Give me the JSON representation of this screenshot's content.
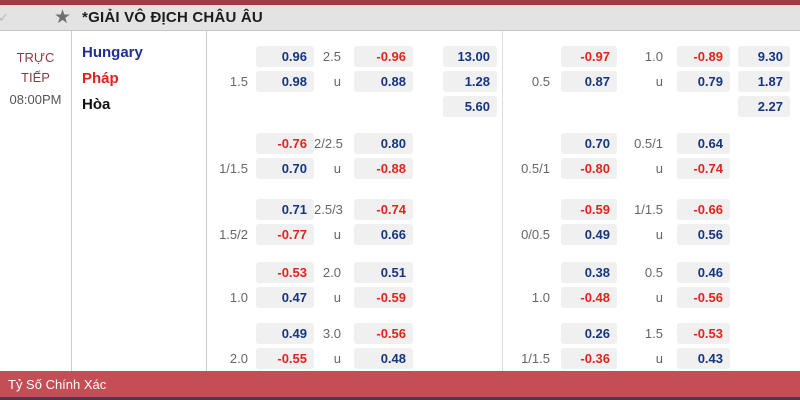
{
  "topbar": {
    "title": "*GIẢI VÔ ĐỊCH CHÂU ÂU",
    "icons": {
      "star": "★",
      "checkmark": "✓"
    }
  },
  "match": {
    "status": "TRỰC TIẾP",
    "time": "08:00PM",
    "home": "Hungary",
    "away": "Pháp",
    "draw": "Hòa"
  },
  "colors": {
    "positive_odds": "#17357e",
    "negative_odds": "#e0241f",
    "top_strip": "#9d3c45",
    "footer_bar": "#c44e55",
    "home_team": "#1f2e91",
    "away_team": "#e51f1c",
    "status_text": "#8d3b44"
  },
  "blocks": [
    {
      "left": {
        "rows": [
          {
            "hdp": "",
            "hdp_odds": "0.96",
            "line": "2.5",
            "line_odds": "-0.96",
            "x12": "13.00"
          },
          {
            "hdp": "1.5",
            "hdp_odds": "0.98",
            "line": "u",
            "line_odds": "0.88",
            "x12": "1.28"
          },
          {
            "hdp": "",
            "hdp_odds": "",
            "line": "",
            "line_odds": "",
            "x12": "5.60"
          }
        ]
      },
      "right": {
        "rows": [
          {
            "hdp": "",
            "hdp_odds": "-0.97",
            "line": "1.0",
            "line_odds": "-0.89",
            "x12": "9.30"
          },
          {
            "hdp": "0.5",
            "hdp_odds": "0.87",
            "line": "u",
            "line_odds": "0.79",
            "x12": "1.87"
          },
          {
            "hdp": "",
            "hdp_odds": "",
            "line": "",
            "line_odds": "",
            "x12": "2.27"
          }
        ]
      }
    },
    {
      "left": {
        "rows": [
          {
            "hdp": "",
            "hdp_odds": "-0.76",
            "line": "2/2.5",
            "line_odds": "0.80"
          },
          {
            "hdp": "1/1.5",
            "hdp_odds": "0.70",
            "line": "u",
            "line_odds": "-0.88"
          }
        ]
      },
      "right": {
        "rows": [
          {
            "hdp": "",
            "hdp_odds": "0.70",
            "line": "0.5/1",
            "line_odds": "0.64"
          },
          {
            "hdp": "0.5/1",
            "hdp_odds": "-0.80",
            "line": "u",
            "line_odds": "-0.74"
          }
        ]
      }
    },
    {
      "left": {
        "rows": [
          {
            "hdp": "",
            "hdp_odds": "0.71",
            "line": "2.5/3",
            "line_odds": "-0.74"
          },
          {
            "hdp": "1.5/2",
            "hdp_odds": "-0.77",
            "line": "u",
            "line_odds": "0.66"
          }
        ]
      },
      "right": {
        "rows": [
          {
            "hdp": "",
            "hdp_odds": "-0.59",
            "line": "1/1.5",
            "line_odds": "-0.66"
          },
          {
            "hdp": "0/0.5",
            "hdp_odds": "0.49",
            "line": "u",
            "line_odds": "0.56"
          }
        ]
      }
    },
    {
      "left": {
        "rows": [
          {
            "hdp": "",
            "hdp_odds": "-0.53",
            "line": "2.0",
            "line_odds": "0.51"
          },
          {
            "hdp": "1.0",
            "hdp_odds": "0.47",
            "line": "u",
            "line_odds": "-0.59"
          }
        ]
      },
      "right": {
        "rows": [
          {
            "hdp": "",
            "hdp_odds": "0.38",
            "line": "0.5",
            "line_odds": "0.46"
          },
          {
            "hdp": "1.0",
            "hdp_odds": "-0.48",
            "line": "u",
            "line_odds": "-0.56"
          }
        ]
      }
    },
    {
      "left": {
        "rows": [
          {
            "hdp": "",
            "hdp_odds": "0.49",
            "line": "3.0",
            "line_odds": "-0.56"
          },
          {
            "hdp": "2.0",
            "hdp_odds": "-0.55",
            "line": "u",
            "line_odds": "0.48"
          }
        ]
      },
      "right": {
        "rows": [
          {
            "hdp": "",
            "hdp_odds": "0.26",
            "line": "1.5",
            "line_odds": "-0.53"
          },
          {
            "hdp": "1/1.5",
            "hdp_odds": "-0.36",
            "line": "u",
            "line_odds": "0.43"
          }
        ]
      }
    }
  ],
  "footer": {
    "label": "Tỷ Số Chính Xác"
  }
}
